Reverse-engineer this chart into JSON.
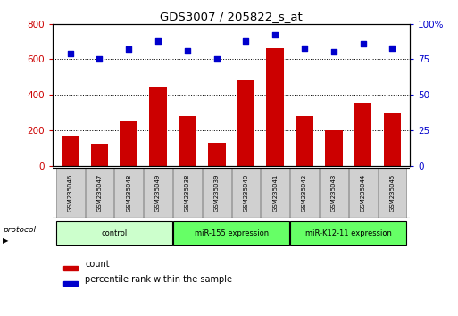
{
  "title": "GDS3007 / 205822_s_at",
  "samples": [
    "GSM235046",
    "GSM235047",
    "GSM235048",
    "GSM235049",
    "GSM235038",
    "GSM235039",
    "GSM235040",
    "GSM235041",
    "GSM235042",
    "GSM235043",
    "GSM235044",
    "GSM235045"
  ],
  "counts": [
    170,
    125,
    255,
    440,
    278,
    130,
    480,
    660,
    278,
    200,
    355,
    295
  ],
  "percentile_ranks": [
    79,
    75,
    82,
    88,
    81,
    75,
    88,
    92,
    83,
    80,
    86,
    83
  ],
  "group_defs": [
    {
      "start": 0,
      "end": 3,
      "label": "control",
      "color": "#ccffcc"
    },
    {
      "start": 4,
      "end": 7,
      "label": "miR-155 expression",
      "color": "#66ff66"
    },
    {
      "start": 8,
      "end": 11,
      "label": "miR-K12-11 expression",
      "color": "#66ff66"
    }
  ],
  "bar_color": "#cc0000",
  "dot_color": "#0000cc",
  "ylim_left": [
    0,
    800
  ],
  "ylim_right": [
    0,
    100
  ],
  "yticks_left": [
    0,
    200,
    400,
    600,
    800
  ],
  "yticks_right": [
    0,
    25,
    50,
    75,
    100
  ],
  "ytick_labels_right": [
    "0",
    "25",
    "50",
    "75",
    "100%"
  ],
  "grid_lines": [
    200,
    400,
    600
  ],
  "bg_color": "#ffffff",
  "bar_width": 0.6,
  "protocol_label": "protocol",
  "legend_count_label": "count",
  "legend_pct_label": "percentile rank within the sample",
  "label_box_color": "#d0d0d0"
}
